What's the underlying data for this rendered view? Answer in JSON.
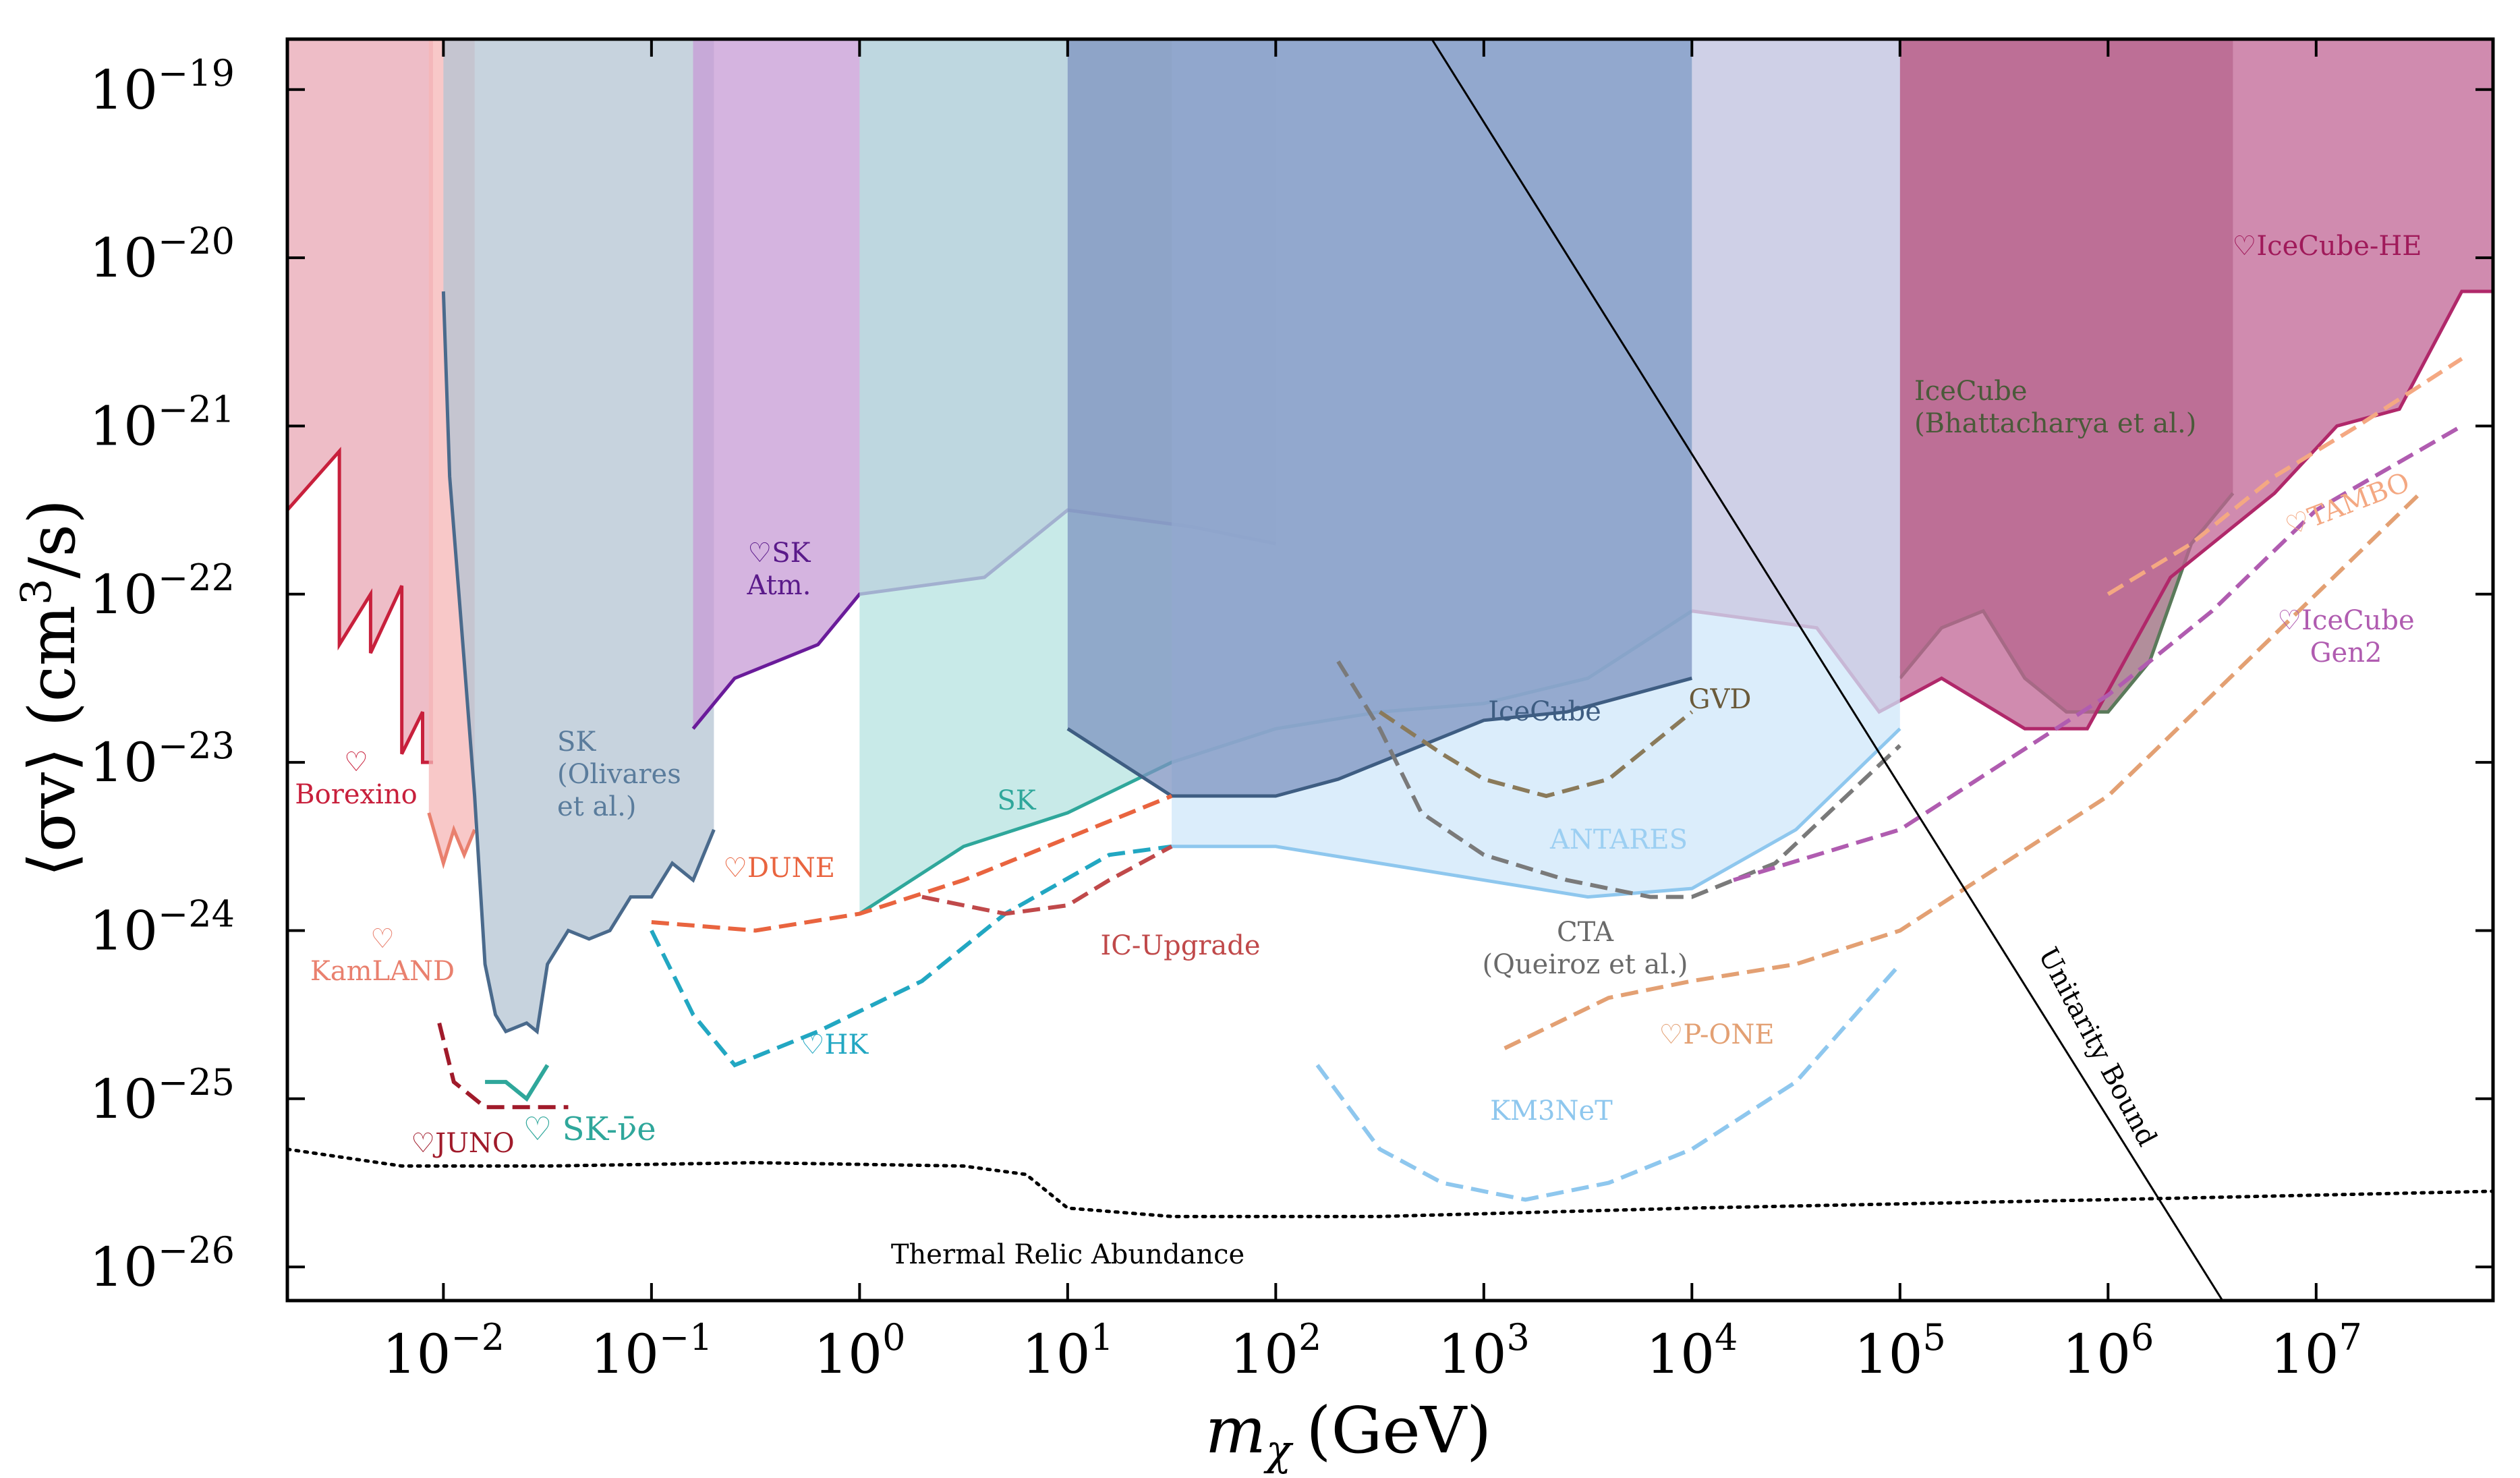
{
  "chart_data": {
    "type": "area",
    "title": "",
    "xlabel": "m_χ (GeV)",
    "xlabel_parts": {
      "symbol": "m",
      "subscript": "χ",
      "unit": "(GeV)"
    },
    "ylabel": "⟨σv⟩ (cm³/s)",
    "ylabel_parts": {
      "open": "⟨σv⟩ (cm",
      "sup": "3",
      "close": "/s)"
    },
    "xscale": "log",
    "yscale": "log",
    "xlim_log10": [
      -2.75,
      7.85
    ],
    "ylim_log10": [
      -26.2,
      -18.7
    ],
    "x_ticks": [
      {
        "base": "10",
        "exp": "−2",
        "value": -2
      },
      {
        "base": "10",
        "exp": "−1",
        "value": -1
      },
      {
        "base": "10",
        "exp": "0",
        "value": 0
      },
      {
        "base": "10",
        "exp": "1",
        "value": 1
      },
      {
        "base": "10",
        "exp": "2",
        "value": 2
      },
      {
        "base": "10",
        "exp": "3",
        "value": 3
      },
      {
        "base": "10",
        "exp": "4",
        "value": 4
      },
      {
        "base": "10",
        "exp": "5",
        "value": 5
      },
      {
        "base": "10",
        "exp": "6",
        "value": 6
      },
      {
        "base": "10",
        "exp": "7",
        "value": 7
      }
    ],
    "y_ticks": [
      {
        "base": "10",
        "exp": "−19",
        "value": -19
      },
      {
        "base": "10",
        "exp": "−20",
        "value": -20
      },
      {
        "base": "10",
        "exp": "−21",
        "value": -21
      },
      {
        "base": "10",
        "exp": "−22",
        "value": -22
      },
      {
        "base": "10",
        "exp": "−23",
        "value": -23
      },
      {
        "base": "10",
        "exp": "−24",
        "value": -24
      },
      {
        "base": "10",
        "exp": "−25",
        "value": -25
      },
      {
        "base": "10",
        "exp": "−26",
        "value": -26
      }
    ],
    "regions": [
      {
        "name": "Borexino",
        "color": "#e8a7b4",
        "stroke": "#c8203c",
        "points": [
          [
            -2.75,
            -21.5
          ],
          [
            -2.5,
            -21.15
          ],
          [
            -2.5,
            -22.3
          ],
          [
            -2.35,
            -22.0
          ],
          [
            -2.35,
            -22.35
          ],
          [
            -2.2,
            -21.95
          ],
          [
            -2.2,
            -22.95
          ],
          [
            -2.1,
            -22.7
          ],
          [
            -2.1,
            -23.0
          ],
          [
            -2.05,
            -23.0
          ]
        ]
      },
      {
        "name": "KamLAND",
        "color": "#f5b5b5",
        "stroke": "#e9806e",
        "points": [
          [
            -2.07,
            -23.3
          ],
          [
            -2.0,
            -23.6
          ],
          [
            -1.95,
            -23.4
          ],
          [
            -1.9,
            -23.55
          ],
          [
            -1.85,
            -23.4
          ]
        ]
      },
      {
        "name": "SK Olivares",
        "color": "#b4c4d3",
        "stroke": "#4a6a8c",
        "points": [
          [
            -2.0,
            -20.2
          ],
          [
            -1.97,
            -21.3
          ],
          [
            -1.9,
            -22.4
          ],
          [
            -1.85,
            -23.2
          ],
          [
            -1.8,
            -24.2
          ],
          [
            -1.75,
            -24.5
          ],
          [
            -1.7,
            -24.6
          ],
          [
            -1.6,
            -24.55
          ],
          [
            -1.55,
            -24.6
          ],
          [
            -1.5,
            -24.2
          ],
          [
            -1.4,
            -24.0
          ],
          [
            -1.3,
            -24.05
          ],
          [
            -1.2,
            -24.0
          ],
          [
            -1.1,
            -23.8
          ],
          [
            -1.0,
            -23.8
          ],
          [
            -0.9,
            -23.6
          ],
          [
            -0.8,
            -23.7
          ],
          [
            -0.7,
            -23.4
          ]
        ]
      },
      {
        "name": "SK Atm",
        "color": "#c79bd5",
        "stroke": "#6a1b9a",
        "points": [
          [
            -0.8,
            -22.8
          ],
          [
            -0.6,
            -22.5
          ],
          [
            -0.4,
            -22.4
          ],
          [
            -0.2,
            -22.3
          ],
          [
            0.0,
            -22.0
          ],
          [
            0.3,
            -21.95
          ],
          [
            0.6,
            -21.9
          ],
          [
            1.0,
            -21.5
          ],
          [
            1.3,
            -21.55
          ],
          [
            1.6,
            -21.6
          ],
          [
            2.0,
            -21.7
          ]
        ]
      },
      {
        "name": "SK",
        "color": "#b6e3e0",
        "stroke": "#2fa79b",
        "points": [
          [
            0.0,
            -23.9
          ],
          [
            0.5,
            -23.5
          ],
          [
            1.0,
            -23.3
          ],
          [
            1.5,
            -23.0
          ],
          [
            2.0,
            -22.8
          ],
          [
            2.5,
            -22.7
          ],
          [
            3.0,
            -22.65
          ],
          [
            3.5,
            -22.5
          ],
          [
            4.0,
            -22.1
          ]
        ]
      },
      {
        "name": "IceCube Bhattacharya",
        "color": "#98687a",
        "stroke": "#5a7a5a",
        "points": [
          [
            5.0,
            -22.5
          ],
          [
            5.2,
            -22.2
          ],
          [
            5.4,
            -22.1
          ],
          [
            5.6,
            -22.5
          ],
          [
            5.8,
            -22.7
          ],
          [
            6.0,
            -22.7
          ],
          [
            6.2,
            -22.4
          ],
          [
            6.4,
            -21.7
          ],
          [
            6.6,
            -21.4
          ]
        ]
      },
      {
        "name": "IceCube-HE",
        "color": "#c06494",
        "stroke": "#b0286a",
        "points": [
          [
            4.0,
            -22.1
          ],
          [
            4.6,
            -22.2
          ],
          [
            4.9,
            -22.7
          ],
          [
            5.2,
            -22.5
          ],
          [
            5.6,
            -22.8
          ],
          [
            5.9,
            -22.8
          ],
          [
            6.3,
            -21.9
          ],
          [
            6.8,
            -21.4
          ],
          [
            7.1,
            -21.0
          ],
          [
            7.4,
            -20.9
          ],
          [
            7.7,
            -20.2
          ],
          [
            7.85,
            -20.2
          ]
        ]
      },
      {
        "name": "ANTARES",
        "color": "#cfe7fa",
        "stroke": "#8ec7ee",
        "points": [
          [
            1.5,
            -23.5
          ],
          [
            2.0,
            -23.5
          ],
          [
            2.5,
            -23.6
          ],
          [
            3.0,
            -23.7
          ],
          [
            3.5,
            -23.8
          ],
          [
            4.0,
            -23.75
          ],
          [
            4.5,
            -23.4
          ],
          [
            5.0,
            -22.8
          ]
        ]
      },
      {
        "name": "IceCube",
        "color": "#7d93c0",
        "stroke": "#3e5d82",
        "points": [
          [
            1.0,
            -22.8
          ],
          [
            1.5,
            -23.2
          ],
          [
            2.0,
            -23.2
          ],
          [
            2.3,
            -23.1
          ],
          [
            2.6,
            -22.95
          ],
          [
            3.0,
            -22.75
          ],
          [
            3.4,
            -22.7
          ],
          [
            3.7,
            -22.6
          ],
          [
            4.0,
            -22.5
          ]
        ]
      }
    ],
    "series": [
      {
        "name": "♡DUNE",
        "color": "#e9643f",
        "style": "dashed",
        "points": [
          [
            -1.0,
            -23.95
          ],
          [
            -0.5,
            -24.0
          ],
          [
            0.0,
            -23.9
          ],
          [
            0.5,
            -23.7
          ],
          [
            1.0,
            -23.45
          ],
          [
            1.5,
            -23.2
          ]
        ]
      },
      {
        "name": "♡HK",
        "color": "#22a7c2",
        "style": "dashed",
        "points": [
          [
            -1.0,
            -24.0
          ],
          [
            -0.8,
            -24.5
          ],
          [
            -0.6,
            -24.8
          ],
          [
            -0.2,
            -24.6
          ],
          [
            0.3,
            -24.3
          ],
          [
            0.7,
            -23.9
          ],
          [
            1.2,
            -23.55
          ],
          [
            1.5,
            -23.5
          ]
        ]
      },
      {
        "name": "IC-Upgrade",
        "color": "#c0494a",
        "style": "dashed",
        "points": [
          [
            0.3,
            -23.8
          ],
          [
            0.7,
            -23.9
          ],
          [
            1.0,
            -23.85
          ],
          [
            1.2,
            -23.7
          ],
          [
            1.5,
            -23.5
          ]
        ]
      },
      {
        "name": "♡JUNO",
        "color": "#a01a2a",
        "style": "dashed",
        "points": [
          [
            -2.02,
            -24.55
          ],
          [
            -1.95,
            -24.9
          ],
          [
            -1.8,
            -25.05
          ],
          [
            -1.4,
            -25.05
          ]
        ]
      },
      {
        "name": "♡ SK-ν̄e",
        "color": "#2fa79b",
        "style": "solid",
        "points": [
          [
            -1.8,
            -24.9
          ],
          [
            -1.7,
            -24.9
          ],
          [
            -1.6,
            -25.0
          ],
          [
            -1.5,
            -24.8
          ]
        ]
      },
      {
        "name": "GVD",
        "color": "#8a7a5a",
        "style": "dashed",
        "points": [
          [
            2.5,
            -22.7
          ],
          [
            2.8,
            -22.95
          ],
          [
            3.0,
            -23.1
          ],
          [
            3.3,
            -23.2
          ],
          [
            3.6,
            -23.1
          ],
          [
            4.0,
            -22.7
          ]
        ]
      },
      {
        "name": "CTA (Queiroz et al.)",
        "color": "#7a7a7a",
        "style": "dashed",
        "points": [
          [
            2.3,
            -22.4
          ],
          [
            2.5,
            -22.8
          ],
          [
            2.7,
            -23.3
          ],
          [
            3.0,
            -23.55
          ],
          [
            3.4,
            -23.7
          ],
          [
            3.8,
            -23.8
          ],
          [
            4.0,
            -23.8
          ],
          [
            4.4,
            -23.6
          ],
          [
            5.0,
            -22.9
          ]
        ]
      },
      {
        "name": "KM3NeT",
        "color": "#8ec7ee",
        "style": "dashed",
        "points": [
          [
            2.2,
            -24.8
          ],
          [
            2.5,
            -25.3
          ],
          [
            2.8,
            -25.5
          ],
          [
            3.2,
            -25.6
          ],
          [
            3.6,
            -25.5
          ],
          [
            4.0,
            -25.3
          ],
          [
            4.5,
            -24.9
          ],
          [
            5.0,
            -24.2
          ]
        ]
      },
      {
        "name": "♡P-ONE",
        "color": "#e3a073",
        "style": "dashed",
        "points": [
          [
            3.1,
            -24.7
          ],
          [
            3.6,
            -24.4
          ],
          [
            4.0,
            -24.3
          ],
          [
            4.5,
            -24.2
          ],
          [
            5.0,
            -24.0
          ],
          [
            5.5,
            -23.6
          ],
          [
            6.0,
            -23.2
          ],
          [
            6.5,
            -22.6
          ],
          [
            7.0,
            -22.0
          ],
          [
            7.5,
            -21.4
          ]
        ]
      },
      {
        "name": "♡TAMBO",
        "color": "#f4a882",
        "style": "dashed",
        "points": [
          [
            6.0,
            -22.0
          ],
          [
            6.4,
            -21.7
          ],
          [
            6.8,
            -21.3
          ],
          [
            7.2,
            -21.0
          ],
          [
            7.7,
            -20.6
          ]
        ]
      },
      {
        "name": "♡IceCube Gen2",
        "color": "#b05cb0",
        "style": "dashed",
        "points": [
          [
            4.2,
            -23.7
          ],
          [
            5.0,
            -23.4
          ],
          [
            5.5,
            -23.0
          ],
          [
            6.0,
            -22.6
          ],
          [
            6.5,
            -22.1
          ],
          [
            7.0,
            -21.5
          ],
          [
            7.7,
            -21.0
          ]
        ]
      },
      {
        "name": "Thermal Relic Abundance",
        "color": "#000000",
        "style": "dotted",
        "points": [
          [
            -2.75,
            -25.3
          ],
          [
            -2.2,
            -25.4
          ],
          [
            -1.5,
            -25.4
          ],
          [
            -0.5,
            -25.38
          ],
          [
            0.5,
            -25.4
          ],
          [
            0.8,
            -25.45
          ],
          [
            1.0,
            -25.65
          ],
          [
            1.5,
            -25.7
          ],
          [
            2.5,
            -25.7
          ],
          [
            4.0,
            -25.65
          ],
          [
            6.0,
            -25.6
          ],
          [
            7.85,
            -25.55
          ]
        ]
      },
      {
        "name": "Unitarity Bound",
        "color": "#000000",
        "style": "solid",
        "points": [
          [
            2.75,
            -18.7
          ],
          [
            6.55,
            -26.2
          ]
        ]
      }
    ],
    "annotations": {
      "borexino": "♡\nBorexino",
      "kamland": "♡\nKamLAND",
      "juno": "♡JUNO",
      "sk_nubar": "♡ SK-ν̄e",
      "sk_olivares": "SK\n(Olivares\net al.)",
      "sk_atm": "♡SK\nAtm.",
      "dune": "♡DUNE",
      "sk": "SK",
      "hk": "♡HK",
      "ic_upgrade": "IC-Upgrade",
      "icecube": "IceCube",
      "gvd": "GVD",
      "antares": "ANTARES",
      "cta": "CTA\n(Queiroz et al.)",
      "km3net": "KM3NeT",
      "pone": "♡P-ONE",
      "icecube_he": "♡IceCube-HE",
      "icecube_bhatt": "IceCube\n(Bhattacharya et al.)",
      "tambo": "♡TAMBO",
      "gen2": "♡IceCube\nGen2",
      "thermal": "Thermal Relic Abundance",
      "unitarity": "Unitarity Bound"
    },
    "legend": "none",
    "grid": false
  }
}
